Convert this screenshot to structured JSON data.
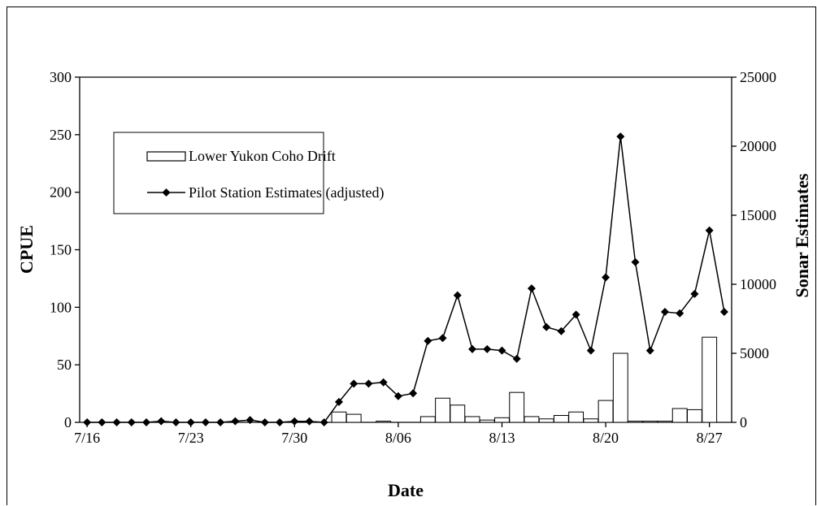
{
  "chart_data": {
    "type": "bar+line",
    "xlabel": "Date",
    "ylabel_left": "CPUE",
    "ylabel_right": "Sonar Estimates",
    "ylim_left": [
      0,
      300
    ],
    "ylim_right": [
      0,
      25000
    ],
    "yticks_left": [
      "0",
      "50",
      "100",
      "150",
      "200",
      "250",
      "300"
    ],
    "yticks_right": [
      "0",
      "5000",
      "10000",
      "15000",
      "20000",
      "25000"
    ],
    "x_tick_labels": [
      "7/16",
      "7/23",
      "7/30",
      "8/06",
      "8/13",
      "8/20",
      "8/27"
    ],
    "dates": [
      "7/16",
      "7/17",
      "7/18",
      "7/19",
      "7/20",
      "7/21",
      "7/22",
      "7/23",
      "7/24",
      "7/25",
      "7/26",
      "7/27",
      "7/28",
      "7/29",
      "7/30",
      "7/31",
      "8/01",
      "8/02",
      "8/03",
      "8/04",
      "8/05",
      "8/06",
      "8/07",
      "8/08",
      "8/09",
      "8/10",
      "8/11",
      "8/12",
      "8/13",
      "8/14",
      "8/15",
      "8/16",
      "8/17",
      "8/18",
      "8/19",
      "8/20",
      "8/21",
      "8/22",
      "8/23",
      "8/24",
      "8/25",
      "8/26",
      "8/27",
      "8/28"
    ],
    "legend_position": "upper-left",
    "grid": false,
    "series": [
      {
        "name": "Lower Yukon Coho Drift",
        "kind": "bar",
        "axis": "left",
        "values": [
          null,
          null,
          null,
          null,
          null,
          null,
          null,
          null,
          null,
          null,
          null,
          null,
          null,
          null,
          null,
          null,
          null,
          9,
          7,
          null,
          1,
          null,
          null,
          5,
          21,
          15,
          5,
          2,
          4,
          26,
          5,
          3,
          6,
          9,
          3,
          19,
          60,
          1,
          1,
          1,
          12,
          11,
          74,
          null
        ]
      },
      {
        "name": "Pilot Station Estimates (adjusted)",
        "kind": "line",
        "axis": "right",
        "marker": "diamond",
        "values": [
          0,
          0,
          0,
          0,
          0,
          80,
          0,
          0,
          0,
          0,
          80,
          170,
          0,
          0,
          70,
          70,
          0,
          1480,
          2800,
          2800,
          2900,
          1900,
          2100,
          5900,
          6100,
          9200,
          5300,
          5300,
          5200,
          4600,
          9700,
          6900,
          6600,
          7800,
          5200,
          10500,
          20700,
          11600,
          5200,
          8000,
          7900,
          9300,
          13900,
          8000
        ]
      }
    ]
  }
}
